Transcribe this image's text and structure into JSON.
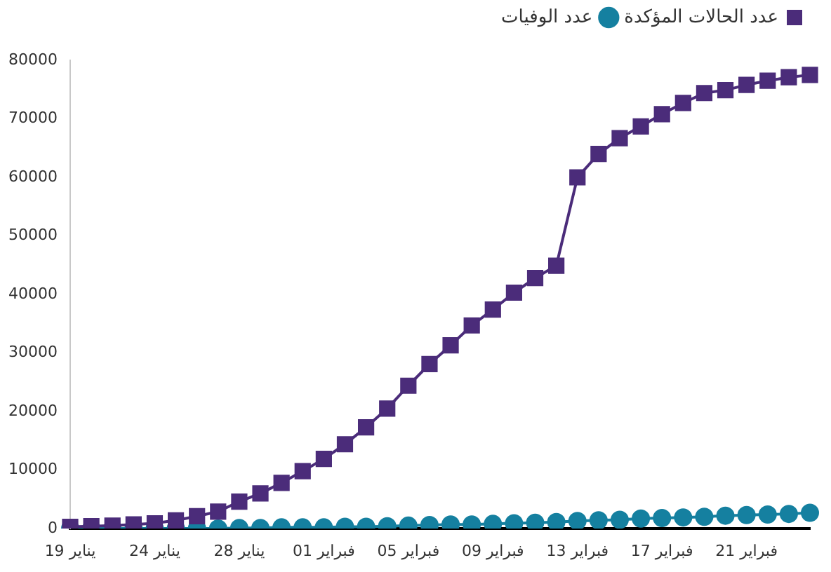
{
  "chart_data": {
    "type": "line",
    "categories": [
      "19 يناير",
      null,
      null,
      null,
      "24 يناير",
      null,
      null,
      null,
      "28 يناير",
      null,
      null,
      null,
      "01 فبراير",
      null,
      null,
      null,
      "05 فبراير",
      null,
      null,
      null,
      "09 فبراير",
      null,
      null,
      null,
      "13 فبراير",
      null,
      null,
      null,
      "17 فبراير",
      null,
      null,
      null,
      "21 فبراير",
      null,
      null,
      null
    ],
    "series": [
      {
        "name": "عدد الحالات المؤكدة",
        "color": "#4b2c7a",
        "marker": "square",
        "values": [
          300,
          400,
          500,
          700,
          900,
          1400,
          2100,
          2900,
          4600,
          6000,
          7800,
          9800,
          11900,
          14400,
          17300,
          20500,
          24400,
          28100,
          31300,
          34700,
          37400,
          40300,
          42800,
          44900,
          60000,
          64000,
          66700,
          68700,
          70800,
          72700,
          74400,
          74900,
          75800,
          76500,
          77100,
          77500
        ]
      },
      {
        "name": "عدد الوفيات",
        "color": "#1580a0",
        "marker": "circle",
        "values": [
          0,
          0,
          0,
          0,
          0,
          0,
          0,
          0,
          100,
          100,
          200,
          200,
          200,
          300,
          300,
          400,
          500,
          600,
          700,
          700,
          800,
          900,
          1000,
          1100,
          1300,
          1400,
          1500,
          1700,
          1800,
          1900,
          2000,
          2200,
          2300,
          2400,
          2500,
          2700
        ]
      }
    ],
    "ylim": [
      0,
      80000
    ],
    "yticks": [
      0,
      10000,
      20000,
      30000,
      40000,
      50000,
      60000,
      70000,
      80000
    ],
    "legend": "top right"
  }
}
